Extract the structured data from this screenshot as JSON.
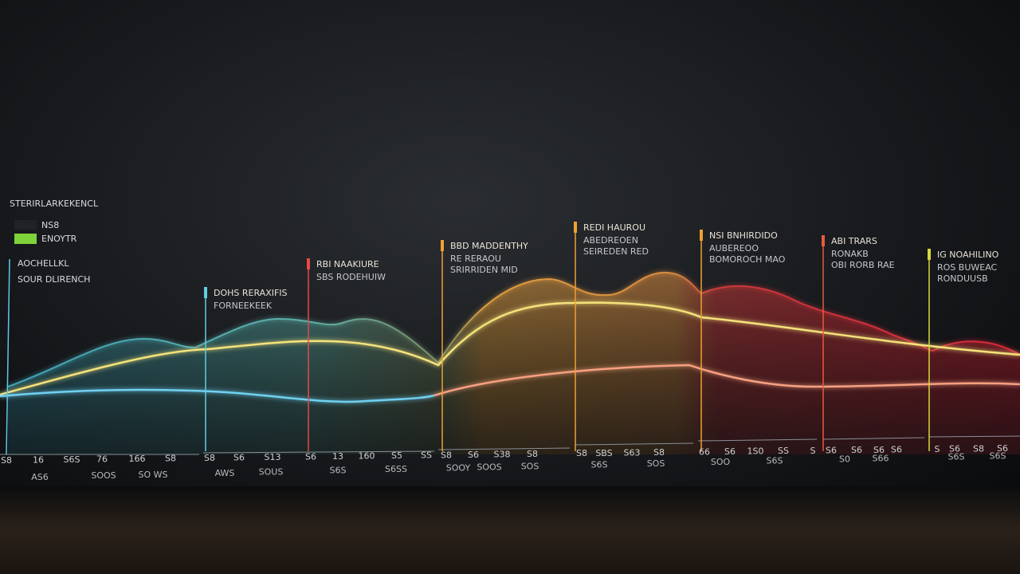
{
  "legend": {
    "title": "STERIRLARKEKENCL",
    "items": [
      "NS8",
      "ENOYTR"
    ]
  },
  "side_note": [
    "AOCHELLKL",
    "SOUR DLIRENCH"
  ],
  "panels": [
    {
      "lines": [
        "DOHS RERAXIFIS",
        "FORNEEKEEK"
      ]
    },
    {
      "lines": [
        "RBI NAAKIURE",
        "SBS RODEHUIW"
      ]
    },
    {
      "lines": [
        "BBD MADDENTHY",
        "RE RERAOU",
        "SRIRRIDEN MID"
      ]
    },
    {
      "lines": [
        "REDI HAUROU",
        "ABEDREOEN",
        "SEIREDEN RED"
      ]
    },
    {
      "lines": [
        "NSI BNHIRDIDO",
        "AUBEREOO",
        "BOMOROCH MAO"
      ]
    },
    {
      "lines": [
        "ABI TRARS",
        "RONAKB",
        "OBI RORB RAE"
      ]
    },
    {
      "lines": [
        "IG NOAHILINO",
        "ROS BUWEAC",
        "RONDUUSB"
      ]
    }
  ],
  "axis_row_1": [
    "S8",
    "16",
    "S6S",
    "76",
    "166",
    "S8",
    "S8",
    "S6",
    "S13",
    "S6",
    "13",
    "160",
    "S5",
    "SS",
    "S8",
    "S6",
    "S38",
    "S8",
    "S8",
    "SBS",
    "S63",
    "S8",
    "66",
    "S6",
    "1S0",
    "SS",
    "S",
    "S6",
    "S6",
    "S6",
    "S6",
    "S",
    "S6",
    "S8",
    "S6"
  ],
  "axis_row_2": [
    "AS6",
    "SOOS",
    "SO WS",
    "AWS",
    "SOUS",
    "S6S",
    "S6SS",
    "SOOY",
    "SOOS",
    "SOS",
    "S6S",
    "SOS",
    "SOO",
    "S6S",
    "S0",
    "S66",
    "S6S",
    "S6S"
  ]
}
